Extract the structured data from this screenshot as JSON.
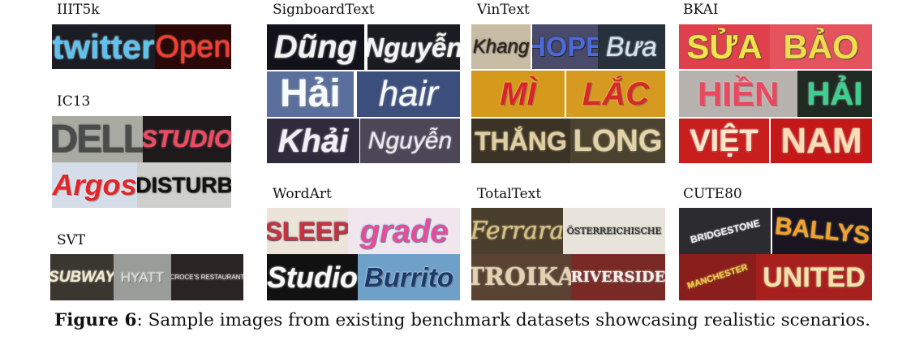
{
  "figure": {
    "label": "Figure 6",
    "caption": ": Sample images from existing benchmark datasets showcasing realistic scenarios."
  },
  "datasets": {
    "iiit5k": {
      "name": "IIIT5k",
      "samples": [
        {
          "text": "twitter",
          "bg": "#1a1d24",
          "fg": "#5fc2ee",
          "stroke": "#e8f6ff"
        },
        {
          "text": "Open",
          "bg": "#2a0808",
          "fg": "#ff3a30",
          "stroke": "#ff9a80"
        }
      ]
    },
    "ic13": {
      "name": "IC13",
      "samples": [
        {
          "text": "DELL",
          "bg": "#a9aba2",
          "fg": "#4a4c4c",
          "stroke": "#6a6c6a"
        },
        {
          "text": "STUDIO",
          "bg": "#1e1a1c",
          "fg": "#f14a63",
          "stroke": "#ff8a9a"
        },
        {
          "text": "Argos",
          "bg": "#d4dde8",
          "fg": "#e0252b",
          "stroke": "#ffffff"
        },
        {
          "text": "DISTURB",
          "bg": "#cfcfcb",
          "fg": "#111111",
          "stroke": "#333333"
        }
      ]
    },
    "svt": {
      "name": "SVT",
      "samples": [
        {
          "text": "SUBWAY",
          "bg": "#3a3630",
          "fg": "#f0e9c8",
          "stroke": "#ffffff"
        },
        {
          "text": "HYATT",
          "bg": "#9a9c9a",
          "fg": "#dcdcdc",
          "stroke": "#f0f0f0"
        },
        {
          "text": "CROCE'S RESTAURANT",
          "bg": "#2a2424",
          "fg": "#d9d4c8",
          "stroke": "#ffffff"
        }
      ]
    },
    "signboardtext": {
      "name": "SignboardText",
      "samples": [
        {
          "text": "Dũng",
          "bg": "#12121a",
          "fg": "#f2f2f2",
          "stroke": "#ffffff"
        },
        {
          "text": "Nguyễn",
          "bg": "#1a1c22",
          "fg": "#f4f4f4",
          "stroke": "#ffffff"
        },
        {
          "text": "Hải",
          "bg": "#5a6f9c",
          "fg": "#f7fbff",
          "stroke": "#ffffff"
        },
        {
          "text": "hair",
          "bg": "#3b4e7c",
          "fg": "#f5f8ff",
          "stroke": "#ffffff"
        },
        {
          "text": "Khải",
          "bg": "#2f2b3c",
          "fg": "#f0eef6",
          "stroke": "#ffffff"
        },
        {
          "text": "Nguyễn",
          "bg": "#4c4657",
          "fg": "#ece8f2",
          "stroke": "#ffffff"
        }
      ]
    },
    "vintext": {
      "name": "VinText",
      "samples": [
        {
          "text": "Khang",
          "bg": "#c9bca4",
          "fg": "#2a2420",
          "stroke": "#4a3f38"
        },
        {
          "text": "HOPE",
          "bg": "#4a4a6a",
          "fg": "#4c6bd8",
          "stroke": "#1a1a2a"
        },
        {
          "text": "Bưa",
          "bg": "#27313c",
          "fg": "#cfe3f0",
          "stroke": "#ffffff"
        },
        {
          "text": "MÌ",
          "bg": "#d59a1c",
          "fg": "#d9232a",
          "stroke": "#ffd9a0"
        },
        {
          "text": "LẮC",
          "bg": "#d69a20",
          "fg": "#d42a2a",
          "stroke": "#ffd9a0"
        },
        {
          "text": "THẮNG",
          "bg": "#3a3326",
          "fg": "#e0cda0",
          "stroke": "#fff2c8"
        },
        {
          "text": "LONG",
          "bg": "#4b4230",
          "fg": "#e3d3a8",
          "stroke": "#fff2c8"
        }
      ]
    },
    "bkai": {
      "name": "BKAI",
      "samples": [
        {
          "text": "SỬA",
          "bg": "#e0404c",
          "fg": "#f5e24a",
          "stroke": "#2a7a3a"
        },
        {
          "text": "BẢO",
          "bg": "#e5535e",
          "fg": "#f2dc4e",
          "stroke": "#2a7a3a"
        },
        {
          "text": "HIỀN",
          "bg": "#b8b2ae",
          "fg": "#e54a5e",
          "stroke": "#ffd0d8"
        },
        {
          "text": "HẢI",
          "bg": "#1e2a22",
          "fg": "#3ccf8e",
          "stroke": "#c8ffe2"
        },
        {
          "text": "VIỆT",
          "bg": "#c81e1e",
          "fg": "#ffe6c8",
          "stroke": "#ffffff"
        },
        {
          "text": "NAM",
          "bg": "#c41818",
          "fg": "#ffdcb4",
          "stroke": "#ffffff"
        }
      ]
    },
    "wordart": {
      "name": "WordArt",
      "samples": [
        {
          "text": "SLEEP",
          "bg": "#ece4d8",
          "fg": "#c8323e",
          "stroke": "#2a2a4a"
        },
        {
          "text": "grade",
          "bg": "#f2e6ee",
          "fg": "#e84b9a",
          "stroke": "#3cc0e0"
        },
        {
          "text": "Studio",
          "bg": "#111111",
          "fg": "#f8f8f8",
          "stroke": "#ffffff"
        },
        {
          "text": "Burrito",
          "bg": "#6ea0c8",
          "fg": "#1e3a6a",
          "stroke": "#f0f6ff"
        }
      ]
    },
    "totaltext": {
      "name": "TotalText",
      "samples": [
        {
          "text": "Ferrara",
          "bg": "#4a3e2c",
          "fg": "#d8c27e",
          "stroke": "#fff0c0"
        },
        {
          "text": "ÖSTERREICHISCHE",
          "bg": "#e8e4dc",
          "fg": "#222222",
          "stroke": "#555555"
        },
        {
          "text": "TROIKA",
          "bg": "#5a4232",
          "fg": "#e2d2b2",
          "stroke": "#fff4dc"
        },
        {
          "text": "RIVERSIDE",
          "bg": "#7a2a26",
          "fg": "#f6f0e8",
          "stroke": "#ffffff"
        }
      ]
    },
    "cute80": {
      "name": "CUTE80",
      "samples": [
        {
          "text": "BRIDGESTONE",
          "bg": "#2c2c2e",
          "fg": "#e8e8e8",
          "stroke": "#ffffff"
        },
        {
          "text": "BALLYS",
          "bg": "#1a1420",
          "fg": "#f2a22a",
          "stroke": "#ffe08a"
        },
        {
          "text": "MANCHESTER",
          "bg": "#8a1e1c",
          "fg": "#f2c43a",
          "stroke": "#ffe890"
        },
        {
          "text": "UNITED",
          "bg": "#a8201e",
          "fg": "#f6e2a2",
          "stroke": "#ffffff"
        }
      ]
    }
  }
}
